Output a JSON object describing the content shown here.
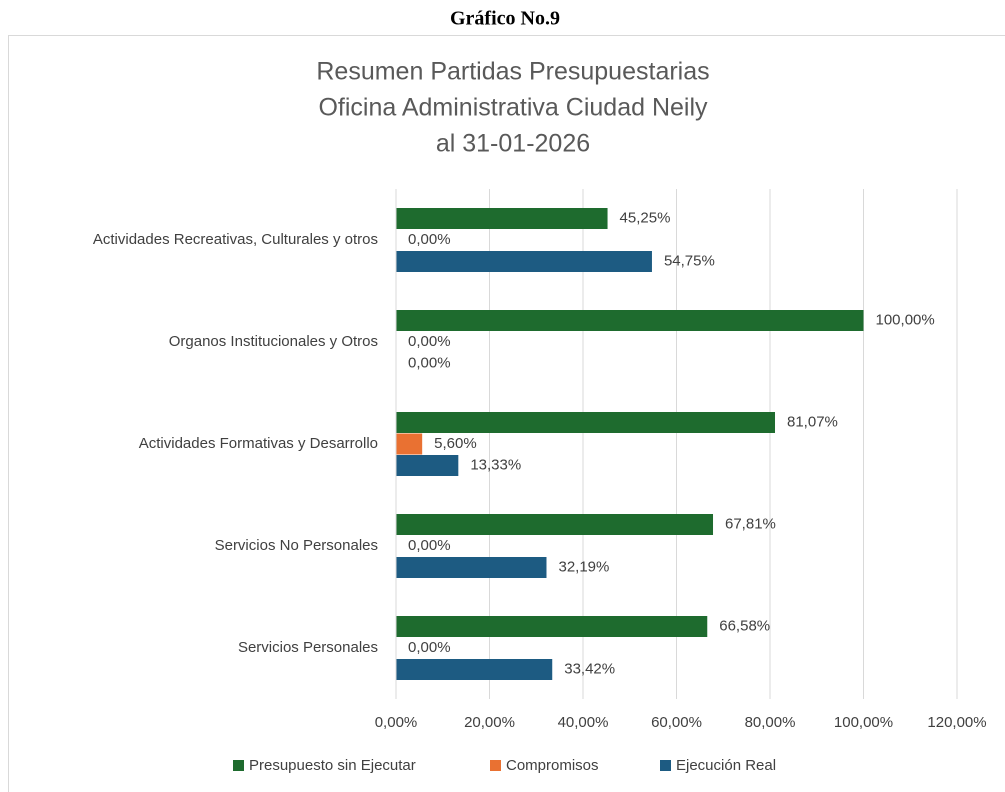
{
  "header": "Gráfico No.9",
  "chart_data": {
    "type": "hbar",
    "title": [
      "Resumen Partidas Presupuestarias",
      "Oficina Administrativa Ciudad Neily",
      "al 31-01-2026"
    ],
    "categories": [
      "Actividades Recreativas, Culturales y otros",
      "Organos Institucionales y Otros",
      "Actividades Formativas y Desarrollo",
      "Servicios No Personales",
      "Servicios Personales"
    ],
    "series": [
      {
        "name": "Presupuesto sin Ejecutar",
        "color": "#1e6b2e",
        "values": [
          45.25,
          100,
          81.07,
          67.81,
          66.58
        ],
        "value_labels": [
          "45,25%",
          "100,00%",
          "81,07%",
          "67,81%",
          "66,58%"
        ]
      },
      {
        "name": "Compromisos",
        "color": "#e97132",
        "values": [
          0,
          0,
          5.6,
          0,
          0
        ],
        "value_labels": [
          "0,00%",
          "0,00%",
          "5,60%",
          "0,00%",
          "0,00%"
        ]
      },
      {
        "name": "Ejecución Real",
        "color": "#1d5b82",
        "values": [
          54.75,
          0,
          13.33,
          32.19,
          33.42
        ],
        "value_labels": [
          "54,75%",
          "0,00%",
          "13,33%",
          "32,19%",
          "33,42%"
        ]
      }
    ],
    "xlim": [
      0,
      120
    ],
    "xticks": [
      {
        "value": 0,
        "label": "0,00%"
      },
      {
        "value": 20,
        "label": "20,00%"
      },
      {
        "value": 40,
        "label": "40,00%"
      },
      {
        "value": 60,
        "label": "60,00%"
      },
      {
        "value": 80,
        "label": "80,00%"
      },
      {
        "value": 100,
        "label": "100,00%"
      },
      {
        "value": 120,
        "label": "120,00%"
      }
    ],
    "grid": true,
    "legend": "bottom"
  }
}
